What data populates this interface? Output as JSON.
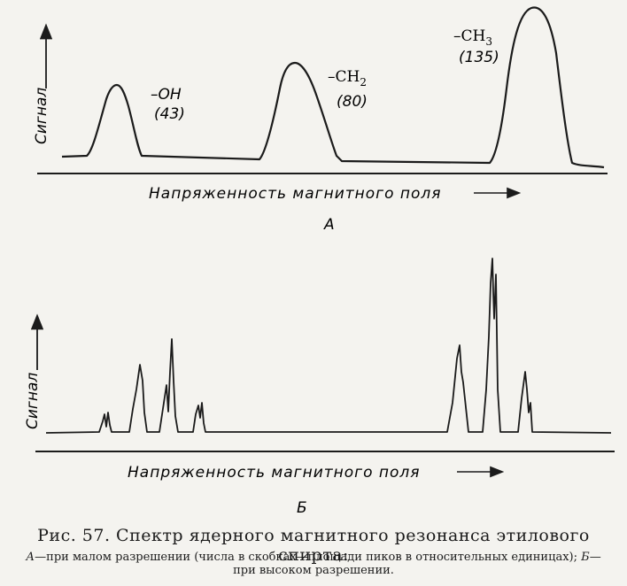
{
  "panel_a": {
    "y_axis_label": "Сигнал",
    "x_axis_label": "Напряженность магнитного поля",
    "panel_label": "А",
    "peaks": [
      {
        "group": "–OH",
        "area": "(43)"
      },
      {
        "group": "–CH",
        "subscript": "2",
        "area": "(80)"
      },
      {
        "group": "–CH",
        "subscript": "3",
        "area": "(135)"
      }
    ]
  },
  "panel_b": {
    "y_axis_label": "Сигнал",
    "x_axis_label": "Напряженность магнитного поля",
    "panel_label": "Б"
  },
  "caption": {
    "title": "Рис. 57. Спектр ядерного магнитного резонанса этилового спирта:",
    "label_a": "А",
    "text_a": "—при малом разрешении (числа в скобках—площади пиков в относительных единицах); ",
    "label_b": "Б",
    "text_b": "—при высоком разрешении."
  }
}
